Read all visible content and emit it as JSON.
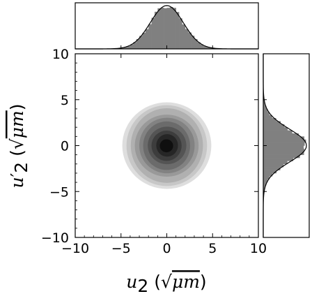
{
  "chart_data": {
    "type": "heatmap",
    "title": "",
    "xlabel": {
      "base": "u",
      "sub": "2",
      "unit_open": " (√",
      "unit_var": "μm",
      "unit_close": ")"
    },
    "ylabel": {
      "base": "u",
      "prime": "′",
      "sub": "2",
      "unit_open": " (√",
      "unit_var": "μm",
      "unit_close": ")"
    },
    "xlim": [
      -10,
      10
    ],
    "ylim": [
      -10,
      10
    ],
    "xticks": [
      "−10",
      "−5",
      "0",
      "5",
      "10"
    ],
    "yticks": [
      "10",
      "5",
      "0",
      "−5",
      "−10"
    ],
    "grid": false,
    "joint_density": {
      "center": [
        0,
        0
      ],
      "sigma_x": 1.8,
      "sigma_y": 1.8,
      "levels": 10,
      "colormap": "grays"
    },
    "marginal_x": {
      "type": "histogram",
      "mean": 0,
      "sigma": 1.8,
      "color": "#808080"
    },
    "marginal_y": {
      "type": "histogram",
      "mean": 0,
      "sigma": 1.8,
      "color": "#808080"
    }
  }
}
